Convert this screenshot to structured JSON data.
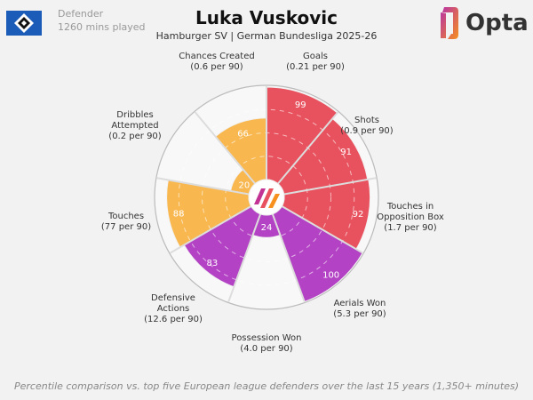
{
  "header": {
    "position": "Defender",
    "minutes": "1260 mins played",
    "title": "Luka Vuskovic",
    "subtitle": "Hamburger SV | German Bundesliga 2025-26",
    "brand": "Opta"
  },
  "footer": "Percentile comparison vs. top five European league defenders over the last 15 years (1,350+ minutes)",
  "chart_data": {
    "type": "pizza",
    "range": [
      0,
      100
    ],
    "categories": [
      {
        "name": "Goals",
        "sub": "(0.21 per 90)",
        "value": 99,
        "group": "attacking"
      },
      {
        "name": "Shots",
        "sub": "(0.9 per 90)",
        "value": 91,
        "group": "attacking"
      },
      {
        "name": "Touches in\nOpposition Box",
        "sub": "(1.7 per 90)",
        "value": 92,
        "group": "attacking"
      },
      {
        "name": "Aerials Won",
        "sub": "(5.3 per 90)",
        "value": 100,
        "group": "defending"
      },
      {
        "name": "Possession Won",
        "sub": "(4.0 per 90)",
        "value": 24,
        "group": "defending"
      },
      {
        "name": "Defensive\nActions",
        "sub": "(12.6 per 90)",
        "value": 83,
        "group": "defending"
      },
      {
        "name": "Touches",
        "sub": "(77 per 90)",
        "value": 88,
        "group": "possession"
      },
      {
        "name": "Dribbles\nAttempted",
        "sub": "(0.2 per 90)",
        "value": 20,
        "group": "possession"
      },
      {
        "name": "Chances Created",
        "sub": "(0.6 per 90)",
        "value": 66,
        "group": "possession"
      }
    ],
    "colors": {
      "attacking": "#e8525e",
      "defending": "#b343c4",
      "possession": "#f8b74f",
      "background": "#f8f8f8"
    }
  }
}
